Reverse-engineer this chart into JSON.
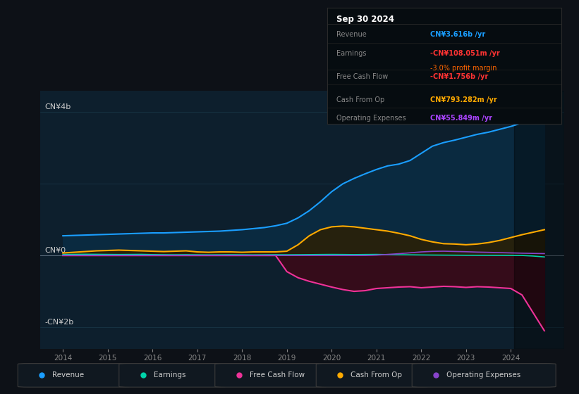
{
  "bg_color": "#0d1117",
  "plot_bg_color": "#0d1f2d",
  "title_text": "Sep 30 2024",
  "info_rows": [
    {
      "label": "Revenue",
      "value": "CN¥3.616b /yr",
      "value_color": "#1a9eff",
      "extra": null,
      "extra_color": null
    },
    {
      "label": "Earnings",
      "value": "-CN¥108.051m /yr",
      "value_color": "#ff3333",
      "extra": "-3.0% profit margin",
      "extra_color": "#ff6600"
    },
    {
      "label": "Free Cash Flow",
      "value": "-CN¥1.756b /yr",
      "value_color": "#ff3333",
      "extra": null,
      "extra_color": null
    },
    {
      "label": "Cash From Op",
      "value": "CN¥793.282m /yr",
      "value_color": "#ffaa00",
      "extra": null,
      "extra_color": null
    },
    {
      "label": "Operating Expenses",
      "value": "CN¥55.849m /yr",
      "value_color": "#aa44ff",
      "extra": null,
      "extra_color": null
    }
  ],
  "ylabel_top": "CN¥4b",
  "ylabel_zero": "CN¥0",
  "ylabel_bottom": "-CN¥2b",
  "revenue_color": "#1a9eff",
  "revenue_fill": "#0a2a40",
  "earnings_color": "#00d4aa",
  "earnings_fill": "#083020",
  "free_cash_flow_color": "#ee3399",
  "free_cash_flow_fill": "#3a0a18",
  "cash_from_op_color": "#ffaa00",
  "cash_from_op_fill": "#2a2008",
  "operating_expenses_color": "#8844cc",
  "legend_labels": [
    "Revenue",
    "Earnings",
    "Free Cash Flow",
    "Cash From Op",
    "Operating Expenses"
  ],
  "legend_colors": [
    "#1a9eff",
    "#00d4aa",
    "#ee3399",
    "#ffaa00",
    "#8844cc"
  ],
  "xmin": 2013.5,
  "xmax": 2025.2,
  "ymin": -2.6,
  "ymax": 4.6,
  "xtick_years": [
    2014,
    2015,
    2016,
    2017,
    2018,
    2019,
    2020,
    2021,
    2022,
    2023,
    2024
  ],
  "dark_overlay_start": 2024.08
}
